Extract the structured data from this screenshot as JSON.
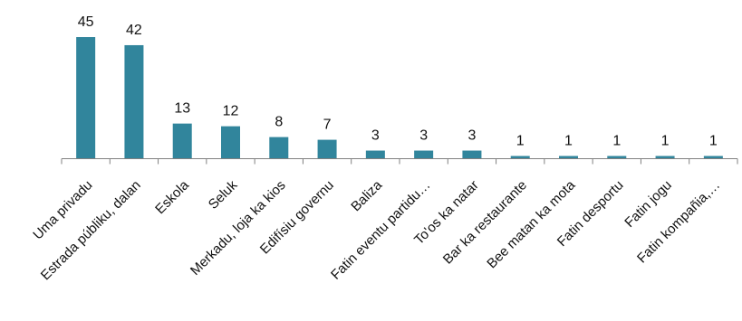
{
  "chart_data": {
    "type": "bar",
    "title": "",
    "xlabel": "",
    "ylabel": "",
    "ylim": [
      0,
      45
    ],
    "grid": false,
    "legend": "none",
    "bar_color": "#31859C",
    "axis_color": "#808080",
    "categories": [
      "Uma privadu",
      "Estrada públiku, dalan",
      "Eskola",
      "Seluk",
      "Merkadu, loja ka kios",
      "Edifísiu governu",
      "Baliza",
      "Fatin eventu partidu…",
      "To'os ka natar",
      "Bar ka restaurante",
      "Bee matan ka mota",
      "Fatin desportu",
      "Fatin jogu",
      "Fatin kompañia,…"
    ],
    "values": [
      45,
      42,
      13,
      12,
      8,
      7,
      3,
      3,
      3,
      1,
      1,
      1,
      1,
      1
    ],
    "data_labels": [
      "45",
      "42",
      "13",
      "12",
      "8",
      "7",
      "3",
      "3",
      "3",
      "1",
      "1",
      "1",
      "1",
      "1"
    ]
  }
}
